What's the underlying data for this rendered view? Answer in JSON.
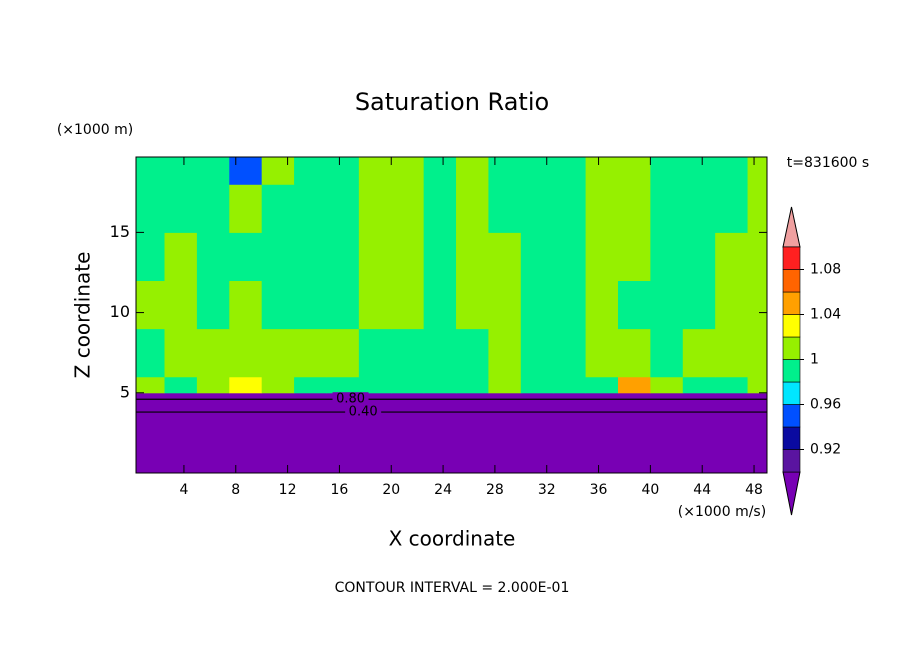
{
  "chart_data": {
    "type": "contour",
    "title": "Saturation Ratio",
    "y_unit": "(×1000 m)",
    "x_unit": "(×1000 m/s)",
    "time_label": "t=831600 s",
    "xlabel": "X coordinate",
    "ylabel": "Z coordinate",
    "footer": "CONTOUR INTERVAL = 2.000E-01",
    "xlim": [
      0.3,
      49
    ],
    "ylim": [
      0,
      19.7
    ],
    "xticks": [
      4,
      8,
      12,
      16,
      20,
      24,
      28,
      32,
      36,
      40,
      44,
      48
    ],
    "yticks": [
      5,
      10,
      15
    ],
    "field": {
      "x_edges": [
        0.3,
        2.5,
        5,
        7.5,
        10,
        12.5,
        15,
        17.5,
        20,
        22.5,
        25,
        27.5,
        30,
        32.5,
        35,
        37.5,
        40,
        42.5,
        45,
        47.5,
        49
      ],
      "z_edges": [
        0,
        5,
        6,
        9,
        12,
        15,
        18,
        19.7
      ],
      "values": [
        [
          0.5,
          0.5,
          0.5,
          0.5,
          0.5,
          0.5,
          0.5,
          0.5,
          0.5,
          0.5,
          0.5,
          0.5,
          0.5,
          0.5,
          0.5,
          0.5,
          0.5,
          0.5,
          0.5,
          0.5
        ],
        [
          1.01,
          0.99,
          1.01,
          1.03,
          1.01,
          0.99,
          0.99,
          0.99,
          0.99,
          0.99,
          0.99,
          1.01,
          0.99,
          0.99,
          0.99,
          1.05,
          1.01,
          0.99,
          0.99,
          1.01
        ],
        [
          0.99,
          1.01,
          1.01,
          1.01,
          1.01,
          1.01,
          1.01,
          0.99,
          0.99,
          0.99,
          0.99,
          1.01,
          0.99,
          0.99,
          1.01,
          1.01,
          0.99,
          1.01,
          1.01,
          1.01
        ],
        [
          1.01,
          1.01,
          0.99,
          1.01,
          0.99,
          0.99,
          0.99,
          1.01,
          1.01,
          0.99,
          1.01,
          1.01,
          0.99,
          0.99,
          1.01,
          0.99,
          0.99,
          0.99,
          1.01,
          1.01
        ],
        [
          0.99,
          1.01,
          0.99,
          0.99,
          0.99,
          0.99,
          0.99,
          1.01,
          1.01,
          0.99,
          1.01,
          1.01,
          0.99,
          0.99,
          1.01,
          1.01,
          0.99,
          0.99,
          1.01,
          1.01
        ],
        [
          0.99,
          0.99,
          0.99,
          1.01,
          0.99,
          0.99,
          0.99,
          1.01,
          1.01,
          0.99,
          1.01,
          0.99,
          0.99,
          0.99,
          1.01,
          1.01,
          0.99,
          0.99,
          0.99,
          1.01
        ],
        [
          0.99,
          0.99,
          0.99,
          0.95,
          1.01,
          0.99,
          0.99,
          1.01,
          1.01,
          0.99,
          1.01,
          0.99,
          0.99,
          0.99,
          1.01,
          1.01,
          0.99,
          0.99,
          0.99,
          1.01
        ]
      ]
    },
    "contour_levels": [
      0.8,
      0.4
    ],
    "value_labels": [
      "0.80",
      "0.40"
    ],
    "contour_z": [
      4.6,
      3.8
    ],
    "colorbar": {
      "levels": [
        0.9,
        0.92,
        0.94,
        0.96,
        0.98,
        1,
        1.02,
        1.04,
        1.06,
        1.08,
        1.1
      ],
      "colors": [
        "#7800b4",
        "#5a14a0",
        "#0a0aa0",
        "#0050ff",
        "#00e6ff",
        "#00f08c",
        "#96f000",
        "#ffff00",
        "#ffa000",
        "#ff6400",
        "#ff2020",
        "#f0a0a0"
      ],
      "ticks": [
        0.92,
        0.96,
        1,
        1.04,
        1.08
      ]
    }
  }
}
